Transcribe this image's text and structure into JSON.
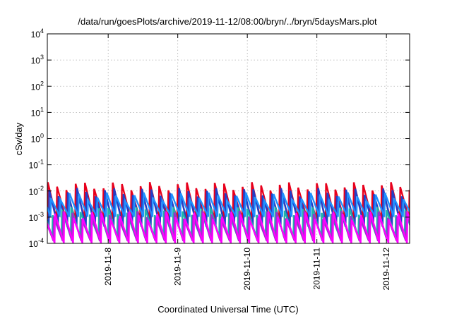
{
  "chart_data": {
    "type": "line",
    "title": "/data/run/goesPlots/archive/2019-11-12/08:00/bryn/../bryn/5daysMars.plot",
    "xlabel": "Coordinated Universal Time (UTC)",
    "ylabel": "cSv/day",
    "yscale": "log",
    "ylim": [
      0.0001,
      10000
    ],
    "xlim": [
      "2019-11-07T03:00",
      "2019-11-12T08:00"
    ],
    "grid": true,
    "x_ticks": [
      {
        "label": "2019-11-8",
        "value": "2019-11-08T00:00"
      },
      {
        "label": "2019-11-9",
        "value": "2019-11-09T00:00"
      },
      {
        "label": "2019-11-10",
        "value": "2019-11-10T00:00"
      },
      {
        "label": "2019-11-11",
        "value": "2019-11-11T00:00"
      },
      {
        "label": "2019-11-12",
        "value": "2019-11-12T00:00"
      }
    ],
    "y_ticks": [
      {
        "base": "10",
        "exp": "-4",
        "value": 0.0001
      },
      {
        "base": "10",
        "exp": "-3",
        "value": 0.001
      },
      {
        "base": "10",
        "exp": "-2",
        "value": 0.01
      },
      {
        "base": "10",
        "exp": "-1",
        "value": 0.1
      },
      {
        "base": "10",
        "exp": "0",
        "value": 1
      },
      {
        "base": "10",
        "exp": "1",
        "value": 10
      },
      {
        "base": "10",
        "exp": "2",
        "value": 100
      },
      {
        "base": "10",
        "exp": "3",
        "value": 1000
      },
      {
        "base": "10",
        "exp": "4",
        "value": 10000
      }
    ],
    "series": [
      {
        "color": "#e8001c",
        "peak": 0.016,
        "trough": 0.0009,
        "start": "2019-11-07T03:00",
        "period_hours": 3.2,
        "phase_hours": 0.0
      },
      {
        "color": "#2040c8",
        "peak": 0.0095,
        "trough": 0.00045,
        "start": "2019-11-07T03:00",
        "period_hours": 3.2,
        "phase_hours": 0.5
      },
      {
        "color": "#1e90ff",
        "peak": 0.0065,
        "trough": 0.0011,
        "start": "2019-11-07T03:00",
        "period_hours": 3.2,
        "phase_hours": 1.1
      },
      {
        "color": "#20b2aa",
        "peak": 0.0018,
        "trough": 0.00018,
        "start": "2019-11-07T03:00",
        "period_hours": 3.2,
        "phase_hours": 1.7
      },
      {
        "color": "#9932cc",
        "peak": 0.0013,
        "trough": 0.00013,
        "start": "2019-11-07T03:00",
        "period_hours": 3.2,
        "phase_hours": 2.1
      },
      {
        "color": "#ff00ff",
        "peak": 0.0012,
        "trough": 0.00011,
        "start": "2019-11-07T03:00",
        "period_hours": 3.2,
        "phase_hours": 2.5
      }
    ]
  }
}
